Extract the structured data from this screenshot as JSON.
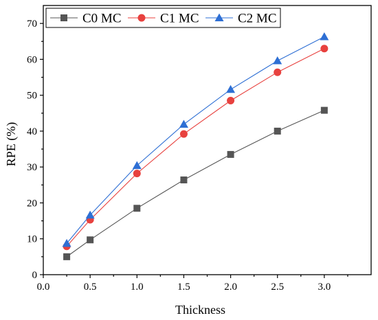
{
  "chart_data": {
    "type": "line",
    "xlabel": "Thickness",
    "ylabel": "RPE (%)",
    "xlim": [
      0.0,
      3.5
    ],
    "ylim": [
      0,
      75
    ],
    "xticks": [
      "0.0",
      "0.5",
      "1.0",
      "1.5",
      "2.0",
      "2.5",
      "3.0"
    ],
    "yticks": [
      "0",
      "10",
      "20",
      "30",
      "40",
      "50",
      "60",
      "70"
    ],
    "grid": false,
    "legend_position": "top-left",
    "x": [
      0.25,
      0.5,
      1.0,
      1.5,
      2.0,
      2.5,
      3.0
    ],
    "series": [
      {
        "name": "C0 MC",
        "color": "#555555",
        "marker": "square",
        "values": [
          5.0,
          9.7,
          18.5,
          26.4,
          33.5,
          40.0,
          45.8
        ]
      },
      {
        "name": "C1 MC",
        "color": "#e8413e",
        "marker": "circle",
        "values": [
          7.9,
          15.3,
          28.2,
          39.2,
          48.5,
          56.4,
          63.0
        ]
      },
      {
        "name": "C2 MC",
        "color": "#2e6fd4",
        "marker": "triangle",
        "values": [
          8.7,
          16.6,
          30.4,
          41.9,
          51.6,
          59.6,
          66.3
        ]
      }
    ]
  }
}
